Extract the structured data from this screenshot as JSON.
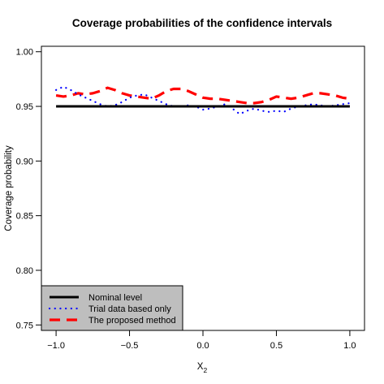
{
  "chart_data": {
    "type": "line",
    "title": "Coverage probabilities of the confidence intervals",
    "xlabel": "X",
    "xlabel_subscript": "2",
    "ylabel": "Coverage probability",
    "xlim": [
      -1.1,
      1.1
    ],
    "ylim": [
      0.745,
      1.005
    ],
    "xticks": [
      -1.0,
      -0.5,
      0.0,
      0.5,
      1.0
    ],
    "xtick_labels": [
      "−1.0",
      "−0.5",
      "0.0",
      "0.5",
      "1.0"
    ],
    "yticks": [
      0.75,
      0.8,
      0.85,
      0.9,
      0.95,
      1.0
    ],
    "ytick_labels": [
      "0.75",
      "0.80",
      "0.85",
      "0.90",
      "0.95",
      "1.00"
    ],
    "grid": false,
    "legend_position": "bottom-left",
    "x": [
      -1.0,
      -0.95,
      -0.9,
      -0.85,
      -0.8,
      -0.75,
      -0.7,
      -0.65,
      -0.6,
      -0.55,
      -0.5,
      -0.45,
      -0.4,
      -0.35,
      -0.3,
      -0.25,
      -0.2,
      -0.15,
      -0.1,
      -0.05,
      0.0,
      0.05,
      0.1,
      0.15,
      0.2,
      0.25,
      0.3,
      0.35,
      0.4,
      0.45,
      0.5,
      0.55,
      0.6,
      0.65,
      0.7,
      0.75,
      0.8,
      0.85,
      0.9,
      0.95,
      1.0
    ],
    "series": [
      {
        "name": "Nominal level",
        "color": "#000000",
        "style": "solid",
        "values": [
          0.95,
          0.95,
          0.95,
          0.95,
          0.95,
          0.95,
          0.95,
          0.95,
          0.95,
          0.95,
          0.95,
          0.95,
          0.95,
          0.95,
          0.95,
          0.95,
          0.95,
          0.95,
          0.95,
          0.95,
          0.95,
          0.95,
          0.95,
          0.95,
          0.95,
          0.95,
          0.95,
          0.95,
          0.95,
          0.95,
          0.95,
          0.95,
          0.95,
          0.95,
          0.95,
          0.95,
          0.95,
          0.95,
          0.95,
          0.95,
          0.95
        ]
      },
      {
        "name": "Trial data based only",
        "color": "#0000ff",
        "style": "dotted",
        "values": [
          0.965,
          0.968,
          0.965,
          0.961,
          0.958,
          0.955,
          0.952,
          0.95,
          0.951,
          0.954,
          0.958,
          0.96,
          0.961,
          0.958,
          0.955,
          0.952,
          0.95,
          0.95,
          0.951,
          0.95,
          0.947,
          0.948,
          0.95,
          0.952,
          0.948,
          0.943,
          0.946,
          0.948,
          0.946,
          0.945,
          0.946,
          0.945,
          0.948,
          0.95,
          0.951,
          0.952,
          0.951,
          0.95,
          0.951,
          0.952,
          0.953
        ]
      },
      {
        "name": "The proposed method",
        "color": "#ff0000",
        "style": "dashed",
        "values": [
          0.96,
          0.959,
          0.96,
          0.962,
          0.961,
          0.962,
          0.964,
          0.967,
          0.965,
          0.962,
          0.96,
          0.959,
          0.958,
          0.957,
          0.96,
          0.964,
          0.966,
          0.966,
          0.964,
          0.961,
          0.958,
          0.957,
          0.957,
          0.956,
          0.955,
          0.954,
          0.953,
          0.953,
          0.954,
          0.956,
          0.959,
          0.958,
          0.957,
          0.958,
          0.96,
          0.962,
          0.962,
          0.961,
          0.96,
          0.958,
          0.957
        ]
      }
    ],
    "legend": {
      "background": "#bebebe",
      "entries": [
        "Nominal level",
        "Trial data based only",
        "The proposed method"
      ]
    }
  }
}
